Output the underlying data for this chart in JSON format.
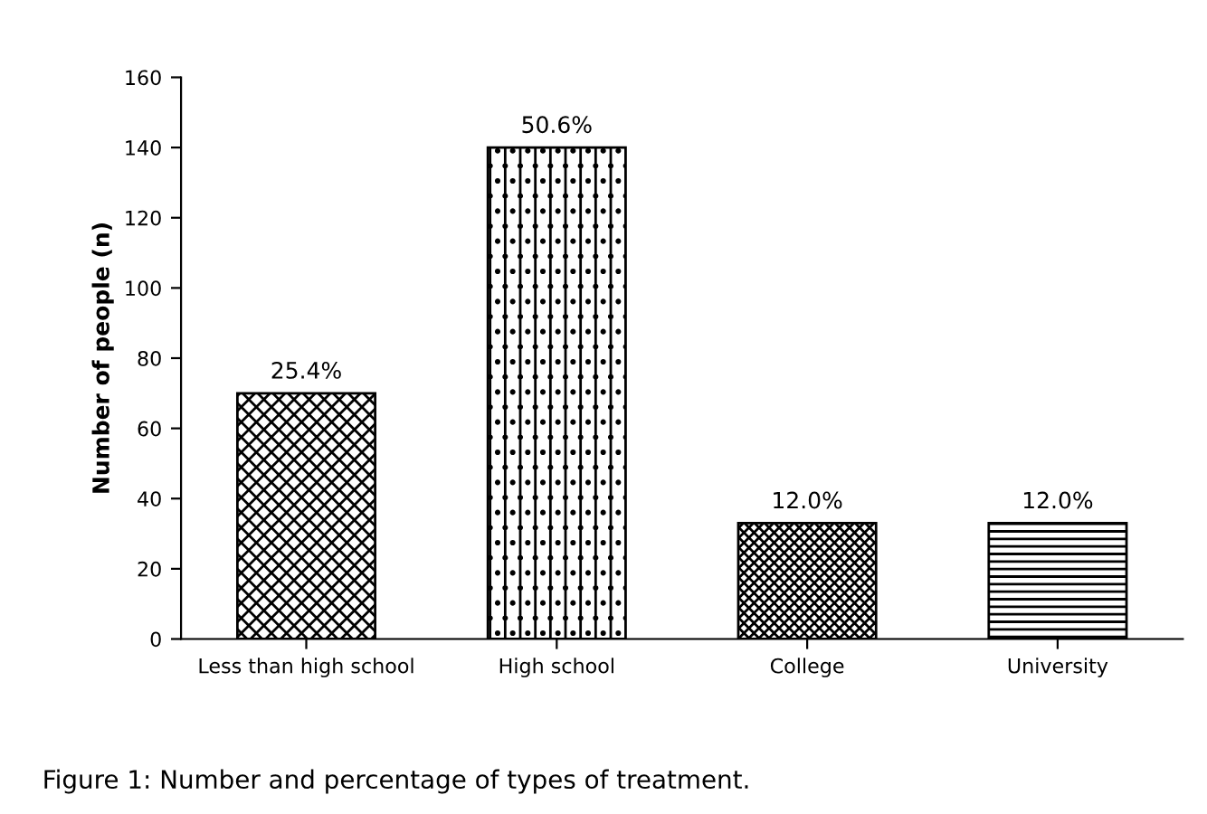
{
  "chart_data": {
    "type": "bar",
    "ylabel": "Number of people (n)",
    "categories": [
      "Less than high school",
      "High school",
      "College",
      "University"
    ],
    "values": [
      70,
      140,
      33,
      33
    ],
    "color": "#000000",
    "ylim": [
      0,
      160
    ],
    "yticks": [
      0,
      20,
      40,
      60,
      80,
      100,
      120,
      140,
      160
    ],
    "grid": false,
    "annotations": [
      {
        "text": "25.4%",
        "x": "Less than high school",
        "y": 70
      },
      {
        "text": "50.6%",
        "x": "High school",
        "y": 140
      },
      {
        "text": "12.0%",
        "x": "College",
        "y": 33
      },
      {
        "text": "12.0%",
        "x": "University",
        "y": 33
      },
      "Figure 1: Number and percentage of types of treatment."
    ]
  }
}
